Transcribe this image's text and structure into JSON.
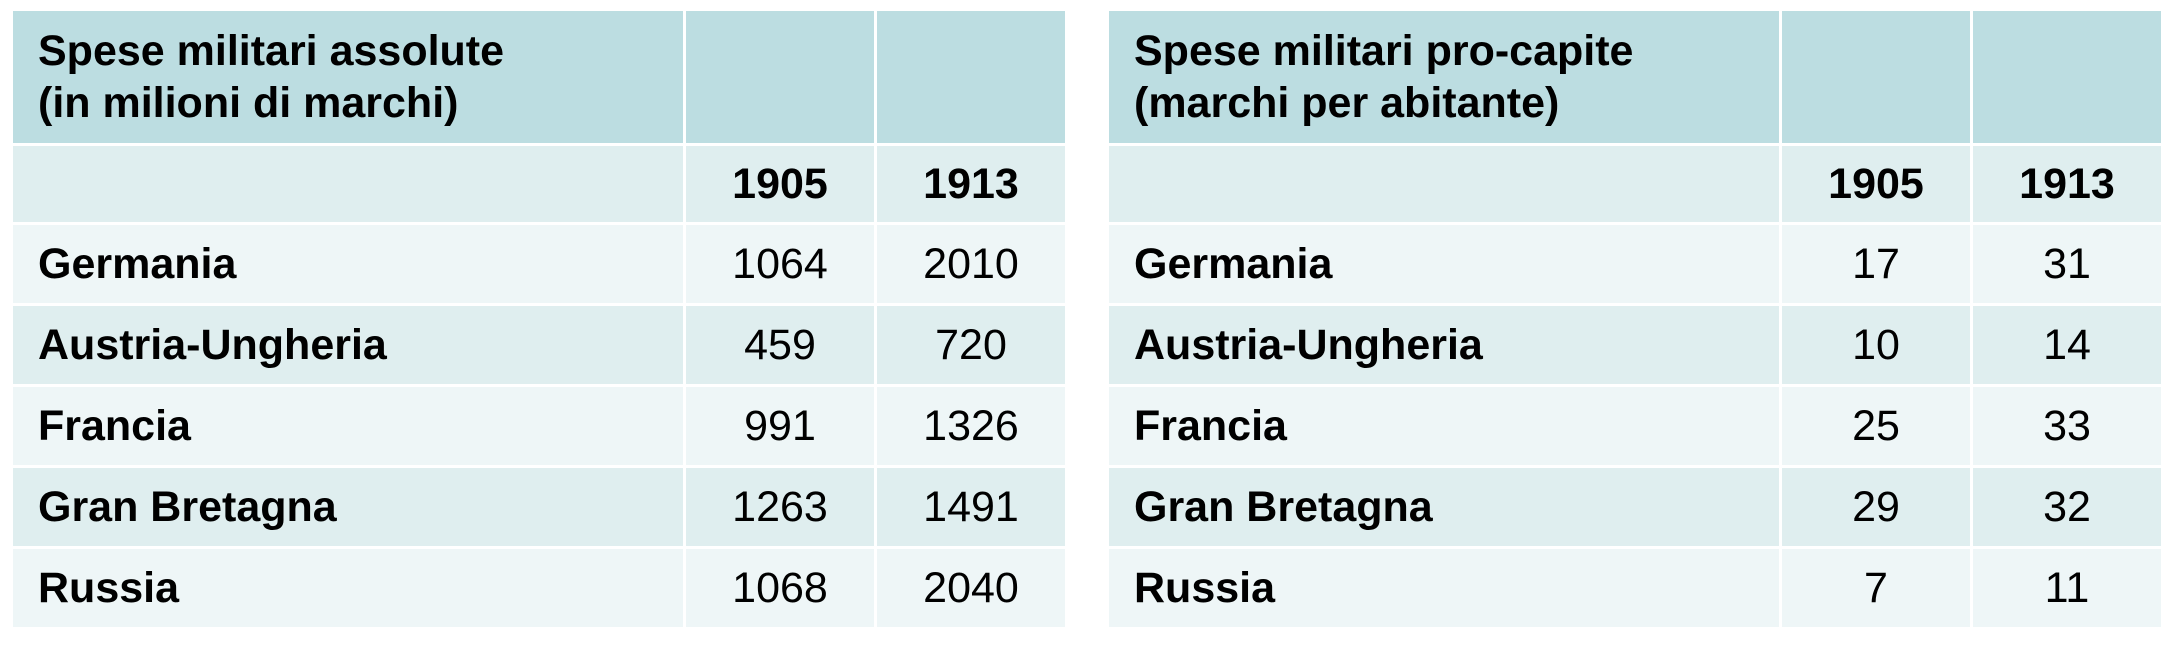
{
  "tables": [
    {
      "title_line1": "Spese militari assolute",
      "title_line2": "(in milioni di marchi)",
      "years": [
        "1905",
        "1913"
      ],
      "rows": [
        {
          "country": "Germania",
          "v1905": "1064",
          "v1913": "2010"
        },
        {
          "country": "Austria-Ungheria",
          "v1905": "459",
          "v1913": "720"
        },
        {
          "country": "Francia",
          "v1905": "991",
          "v1913": "1326"
        },
        {
          "country": "Gran Bretagna",
          "v1905": "1263",
          "v1913": "1491"
        },
        {
          "country": "Russia",
          "v1905": "1068",
          "v1913": "2040"
        }
      ]
    },
    {
      "title_line1": "Spese militari pro-capite",
      "title_line2": "(marchi per abitante)",
      "years": [
        "1905",
        "1913"
      ],
      "rows": [
        {
          "country": "Germania",
          "v1905": "17",
          "v1913": "31"
        },
        {
          "country": "Austria-Ungheria",
          "v1905": "10",
          "v1913": "14"
        },
        {
          "country": "Francia",
          "v1905": "25",
          "v1913": "33"
        },
        {
          "country": "Gran Bretagna",
          "v1905": "29",
          "v1913": "32"
        },
        {
          "country": "Russia",
          "v1905": "7",
          "v1913": "11"
        }
      ]
    }
  ],
  "colors": {
    "header": "#bcdde1",
    "band_light": "#eef6f7",
    "band_dark": "#dfeeef"
  }
}
